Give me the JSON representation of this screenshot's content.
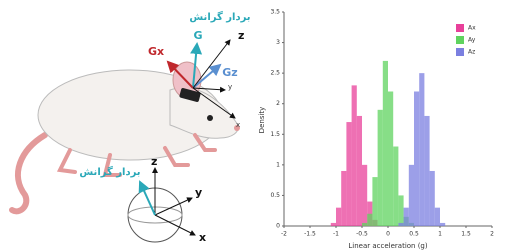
{
  "chart_data": {
    "type": "histogram",
    "xlabel": "Linear acceleration (g)",
    "ylabel": "Density",
    "bins": [
      -2,
      -1.9,
      -1.8,
      -1.7,
      -1.6,
      -1.5,
      -1.4,
      -1.3,
      -1.2,
      -1.1,
      -1,
      -0.9,
      -0.8,
      -0.7,
      -0.6,
      -0.5,
      -0.4,
      -0.3,
      -0.2,
      -0.1,
      0,
      0.1,
      0.2,
      0.3,
      0.4,
      0.5,
      0.6,
      0.7,
      0.8,
      0.9,
      1,
      1.1,
      1.2,
      1.3,
      1.4,
      1.5,
      1.6,
      1.7,
      1.8,
      1.9,
      2
    ],
    "series": [
      {
        "name": "Ax",
        "color": "#e8409a",
        "values": [
          0,
          0,
          0,
          0,
          0,
          0,
          0,
          0,
          0,
          0.05,
          0.3,
          0.9,
          1.7,
          2.3,
          1.8,
          1.0,
          0.4,
          0.1,
          0,
          0,
          0,
          0,
          0,
          0,
          0,
          0,
          0,
          0,
          0,
          0,
          0,
          0,
          0,
          0,
          0,
          0,
          0,
          0,
          0,
          0
        ]
      },
      {
        "name": "Ay",
        "color": "#5fd35f",
        "values": [
          0,
          0,
          0,
          0,
          0,
          0,
          0,
          0,
          0,
          0,
          0,
          0,
          0,
          0,
          0,
          0.05,
          0.2,
          0.8,
          1.9,
          2.7,
          2.2,
          1.3,
          0.5,
          0.15,
          0.05,
          0,
          0,
          0,
          0,
          0,
          0,
          0,
          0,
          0,
          0,
          0,
          0,
          0,
          0,
          0
        ]
      },
      {
        "name": "Az",
        "color": "#7b7fe0",
        "values": [
          0,
          0,
          0,
          0,
          0,
          0,
          0,
          0,
          0,
          0,
          0,
          0,
          0,
          0,
          0,
          0,
          0,
          0,
          0,
          0,
          0,
          0,
          0.05,
          0.3,
          1.0,
          2.2,
          2.5,
          1.8,
          0.9,
          0.3,
          0.05,
          0,
          0,
          0,
          0,
          0,
          0,
          0,
          0,
          0
        ]
      }
    ],
    "xlim": [
      -2,
      2
    ],
    "xticks": [
      -2,
      -1.5,
      -1,
      -0.5,
      0,
      0.5,
      1,
      1.5,
      2
    ],
    "ylim": [
      0,
      3.5
    ],
    "yticks": [
      0,
      0.5,
      1,
      1.5,
      2,
      2.5,
      3,
      3.5
    ],
    "grid": false,
    "legend": "upper right"
  },
  "diagram": {
    "gravity_label_top": "بردار گرانش",
    "g": "G",
    "gx": "Gx",
    "gz": "Gz",
    "z": "z",
    "y": "y",
    "x": "x",
    "gravity_label_bottom": "بردار گرانش",
    "z2": "z",
    "y2": "y",
    "x2": "x"
  }
}
